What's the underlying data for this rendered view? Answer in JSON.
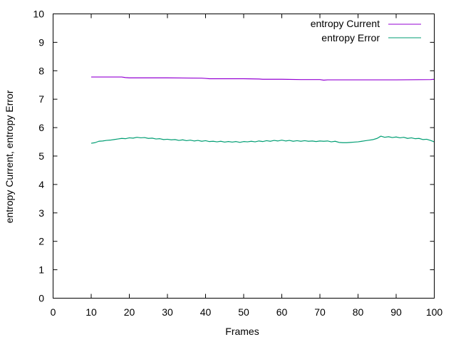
{
  "chart_data": {
    "type": "line",
    "title": "",
    "xlabel": "Frames",
    "ylabel": "entropy Current, entropy Error",
    "xlim": [
      0,
      100
    ],
    "ylim": [
      0,
      10
    ],
    "xticks": [
      0,
      10,
      20,
      30,
      40,
      50,
      60,
      70,
      80,
      90,
      100
    ],
    "yticks": [
      0,
      1,
      2,
      3,
      4,
      5,
      6,
      7,
      8,
      9,
      10
    ],
    "xtick_labels": [
      "0",
      "10",
      "20",
      "30",
      "40",
      "50",
      "60",
      "70",
      "80",
      "90",
      "100"
    ],
    "ytick_labels": [
      "0",
      "1",
      "2",
      "3",
      "4",
      "5",
      "6",
      "7",
      "8",
      "9",
      "10"
    ],
    "grid": false,
    "legend_position": "top-right",
    "series": [
      {
        "name": "entropy Current",
        "color": "#9400d3",
        "x": [
          10,
          18,
          19,
          20,
          30,
          39,
          40,
          41,
          50,
          54,
          55,
          60,
          65,
          70,
          71,
          72,
          80,
          90,
          99,
          100
        ],
        "y": [
          7.78,
          7.78,
          7.76,
          7.75,
          7.75,
          7.74,
          7.73,
          7.72,
          7.72,
          7.71,
          7.7,
          7.7,
          7.69,
          7.69,
          7.67,
          7.68,
          7.68,
          7.68,
          7.69,
          7.7
        ]
      },
      {
        "name": "entropy Error",
        "color": "#009e73",
        "x": [
          10,
          11,
          12,
          13,
          14,
          15,
          16,
          17,
          18,
          19,
          20,
          21,
          22,
          23,
          24,
          25,
          26,
          27,
          28,
          29,
          30,
          31,
          32,
          33,
          34,
          35,
          36,
          37,
          38,
          39,
          40,
          41,
          42,
          43,
          44,
          45,
          46,
          47,
          48,
          49,
          50,
          51,
          52,
          53,
          54,
          55,
          56,
          57,
          58,
          59,
          60,
          61,
          62,
          63,
          64,
          65,
          66,
          67,
          68,
          69,
          70,
          71,
          72,
          73,
          74,
          75,
          76,
          77,
          78,
          79,
          80,
          81,
          82,
          83,
          84,
          85,
          86,
          87,
          88,
          89,
          90,
          91,
          92,
          93,
          94,
          95,
          96,
          97,
          98,
          99,
          100
        ],
        "y": [
          5.45,
          5.47,
          5.52,
          5.53,
          5.55,
          5.56,
          5.58,
          5.6,
          5.62,
          5.61,
          5.64,
          5.63,
          5.66,
          5.64,
          5.65,
          5.62,
          5.63,
          5.6,
          5.61,
          5.58,
          5.59,
          5.57,
          5.58,
          5.55,
          5.57,
          5.54,
          5.56,
          5.53,
          5.55,
          5.52,
          5.54,
          5.51,
          5.52,
          5.5,
          5.52,
          5.49,
          5.51,
          5.49,
          5.51,
          5.48,
          5.51,
          5.5,
          5.52,
          5.5,
          5.53,
          5.51,
          5.54,
          5.52,
          5.55,
          5.53,
          5.56,
          5.53,
          5.55,
          5.52,
          5.54,
          5.52,
          5.54,
          5.52,
          5.53,
          5.51,
          5.53,
          5.52,
          5.53,
          5.5,
          5.52,
          5.48,
          5.47,
          5.47,
          5.48,
          5.49,
          5.5,
          5.52,
          5.54,
          5.56,
          5.58,
          5.62,
          5.7,
          5.66,
          5.68,
          5.65,
          5.67,
          5.64,
          5.66,
          5.62,
          5.64,
          5.61,
          5.62,
          5.58,
          5.59,
          5.55,
          5.5
        ]
      }
    ]
  }
}
